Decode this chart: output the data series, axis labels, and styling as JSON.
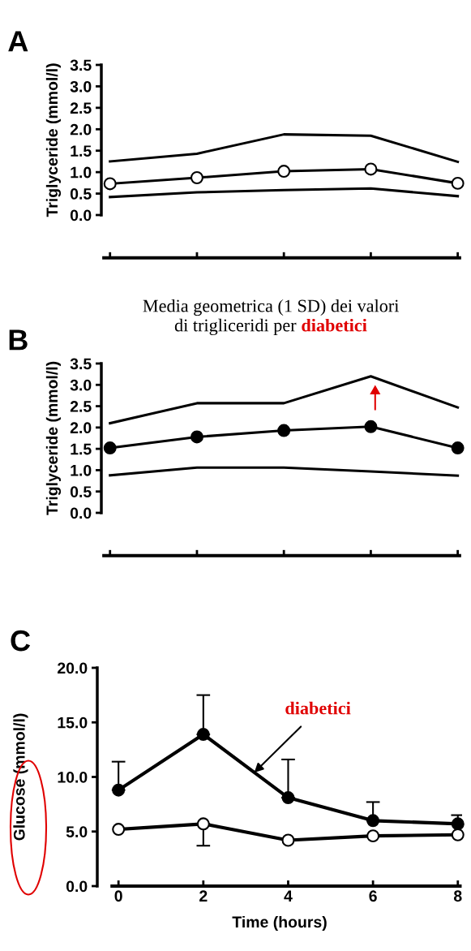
{
  "chart_data": [
    {
      "type": "line",
      "title": "A",
      "ylabel": "Triglyceride (mmol/l)",
      "categories": [
        null,
        null,
        null,
        null,
        null
      ],
      "ylim": [
        0,
        3.5
      ],
      "yticks": [
        {
          "value": 0,
          "label": "0.0"
        },
        {
          "value": 0.5,
          "label": "0.5"
        },
        {
          "value": 1,
          "label": "1.0"
        },
        {
          "value": 1.5,
          "label": "1.5"
        },
        {
          "value": 2,
          "label": "2.0"
        },
        {
          "value": 2.5,
          "label": "2.5"
        },
        {
          "value": 3,
          "label": "3.0"
        },
        {
          "value": 3.5,
          "label": "3.5"
        }
      ],
      "tick_labels": "y",
      "series": [
        {
          "color": "#000000",
          "marker": "none",
          "values": [
            1.25,
            1.43,
            1.88,
            1.85,
            1.24
          ]
        },
        {
          "color": "#000000",
          "colors": [
            "#ffffff",
            "#ffffff",
            "#ffffff",
            "#ffffff",
            "#ffffff"
          ],
          "marker": "circle",
          "values": [
            0.73,
            0.87,
            1.02,
            1.07,
            0.74
          ]
        },
        {
          "color": "#000000",
          "marker": "none",
          "values": [
            0.42,
            0.53,
            0.58,
            0.62,
            0.44
          ]
        }
      ]
    },
    {
      "type": "line",
      "title": "B",
      "subtitle": "Media geometrica (1 SD) dei valori\ndi trigliceridi per diabetici",
      "ylabel": "Triglyceride (mmol/l)",
      "categories": [
        null,
        null,
        null,
        null,
        null
      ],
      "ylim": [
        0,
        3.5
      ],
      "yticks": [
        {
          "value": 0,
          "label": "0.0"
        },
        {
          "value": 0.5,
          "label": "0.5"
        },
        {
          "value": 1,
          "label": "1.0"
        },
        {
          "value": 1.5,
          "label": "1.5"
        },
        {
          "value": 2,
          "label": "2.0"
        },
        {
          "value": 2.5,
          "label": "2.5"
        },
        {
          "value": 3,
          "label": "3.0"
        },
        {
          "value": 3.5,
          "label": "3.5"
        }
      ],
      "tick_labels": "y",
      "series": [
        {
          "color": "#000000",
          "marker": "none",
          "values": [
            2.1,
            2.57,
            2.57,
            3.2,
            2.47
          ]
        },
        {
          "color": "#000000",
          "marker": "circle",
          "values": [
            1.52,
            1.78,
            1.93,
            2.02,
            1.52
          ]
        },
        {
          "color": "#000000",
          "marker": "none",
          "values": [
            0.88,
            1.06,
            1.06,
            0.97,
            0.87
          ]
        }
      ]
    },
    {
      "type": "line",
      "title": "C",
      "xlabel": "Time (hours)",
      "ylabel": "Glucose (mmol/l)",
      "x": [
        0,
        2,
        4,
        6,
        8
      ],
      "xlim": [
        -0.5,
        8.1
      ],
      "xticks": [
        0,
        2,
        4,
        6,
        8
      ],
      "ylim": [
        0,
        20
      ],
      "yticks": [
        {
          "value": 0,
          "label": "0.0"
        },
        {
          "value": 5,
          "label": "5.0"
        },
        {
          "value": 10,
          "label": "10.0"
        },
        {
          "value": 15,
          "label": "15.0"
        },
        {
          "value": 20,
          "label": "20.0"
        }
      ],
      "annotations": [
        {
          "text": "diabetici",
          "x": 3.2,
          "y": 10.4
        }
      ],
      "series": [
        {
          "color": "#000000",
          "marker": "circle",
          "values": [
            8.8,
            13.9,
            8.1,
            6.0,
            5.7
          ],
          "errors": [
            [
              8.8,
              11.4
            ],
            [
              13.9,
              17.5
            ],
            [
              8.1,
              11.6
            ],
            [
              6.0,
              7.7
            ],
            [
              5.7,
              6.5
            ]
          ]
        },
        {
          "color": "#000000",
          "colors": [
            "#ffffff",
            "#ffffff",
            "#ffffff",
            "#ffffff",
            "#ffffff"
          ],
          "marker": "circle",
          "values": [
            5.2,
            5.7,
            4.2,
            4.6,
            4.7
          ],
          "errors": [
            null,
            [
              3.7,
              5.7
            ],
            null,
            null,
            null
          ]
        }
      ]
    }
  ]
}
